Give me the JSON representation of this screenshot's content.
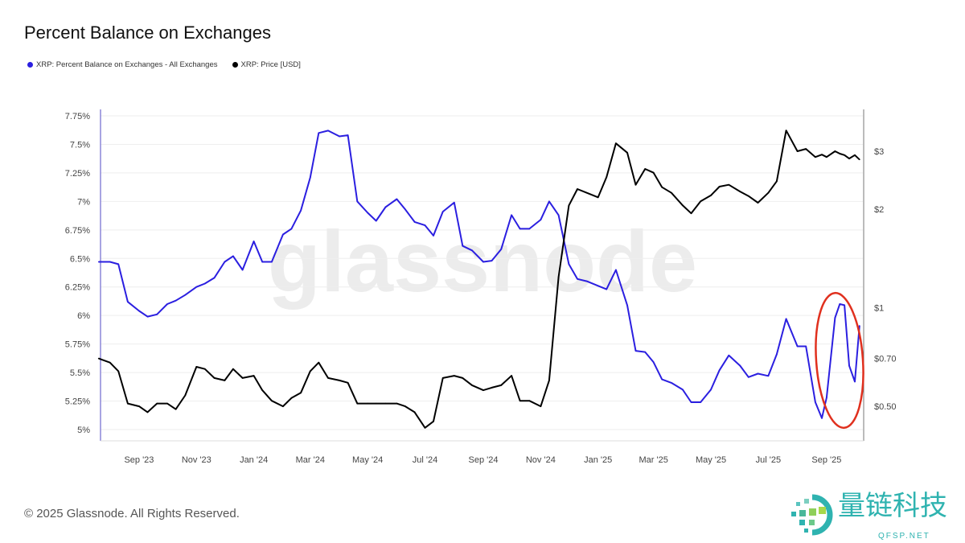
{
  "title": "Percent Balance on Exchanges",
  "legend": [
    {
      "label": "XRP: Percent Balance on Exchanges - All Exchanges",
      "color": "#2b1fe0"
    },
    {
      "label": "XRP: Price [USD]",
      "color": "#000000"
    }
  ],
  "watermark": "glassnode",
  "footer": "© 2025 Glassnode. All Rights Reserved.",
  "logo": {
    "text": "量链科技",
    "sub": "QFSP.NET"
  },
  "annotation_color": "#e0301e",
  "chart_data": {
    "type": "line",
    "title": "Percent Balance on Exchanges",
    "grid": true,
    "legend_position": "top-left",
    "x_ticks": [
      {
        "label": "Sep '23",
        "date": "2023-09-01"
      },
      {
        "label": "Nov '23",
        "date": "2023-11-01"
      },
      {
        "label": "Jan '24",
        "date": "2024-01-01"
      },
      {
        "label": "Mar '24",
        "date": "2024-03-01"
      },
      {
        "label": "May '24",
        "date": "2024-05-01"
      },
      {
        "label": "Jul '24",
        "date": "2024-07-01"
      },
      {
        "label": "Sep '24",
        "date": "2024-09-01"
      },
      {
        "label": "Nov '24",
        "date": "2024-11-01"
      },
      {
        "label": "Jan '25",
        "date": "2025-01-01"
      },
      {
        "label": "Mar '25",
        "date": "2025-03-01"
      },
      {
        "label": "May '25",
        "date": "2025-05-01"
      },
      {
        "label": "Jul '25",
        "date": "2025-07-01"
      },
      {
        "label": "Sep '25",
        "date": "2025-09-01"
      }
    ],
    "x_range": [
      "2023-07-22",
      "2025-10-07"
    ],
    "y_left": {
      "scale": "linear",
      "range": [
        5,
        7.75
      ],
      "ticks": [
        {
          "v": 5,
          "label": "5%"
        },
        {
          "v": 5.25,
          "label": "5.25%"
        },
        {
          "v": 5.5,
          "label": "5.5%"
        },
        {
          "v": 5.75,
          "label": "5.75%"
        },
        {
          "v": 6,
          "label": "6%"
        },
        {
          "v": 6.25,
          "label": "6.25%"
        },
        {
          "v": 6.5,
          "label": "6.5%"
        },
        {
          "v": 6.75,
          "label": "6.75%"
        },
        {
          "v": 7,
          "label": "7%"
        },
        {
          "v": 7.25,
          "label": "7.25%"
        },
        {
          "v": 7.5,
          "label": "7.5%"
        },
        {
          "v": 7.75,
          "label": "7.75%"
        }
      ]
    },
    "y_right": {
      "scale": "log",
      "ticks": [
        {
          "v": 0.5,
          "label": "$0.50"
        },
        {
          "v": 0.7,
          "label": "$0.70"
        },
        {
          "v": 1,
          "label": "$1"
        },
        {
          "v": 2,
          "label": "$2"
        },
        {
          "v": 3,
          "label": "$3"
        }
      ]
    },
    "dates": [
      "2023-07-20",
      "2023-08-01",
      "2023-08-10",
      "2023-08-20",
      "2023-09-01",
      "2023-09-10",
      "2023-09-20",
      "2023-10-01",
      "2023-10-10",
      "2023-10-20",
      "2023-11-01",
      "2023-11-10",
      "2023-11-20",
      "2023-12-01",
      "2023-12-10",
      "2023-12-20",
      "2024-01-01",
      "2024-01-10",
      "2024-01-20",
      "2024-02-01",
      "2024-02-10",
      "2024-02-20",
      "2024-03-01",
      "2024-03-10",
      "2024-03-20",
      "2024-04-01",
      "2024-04-10",
      "2024-04-20",
      "2024-05-01",
      "2024-05-10",
      "2024-05-20",
      "2024-06-01",
      "2024-06-10",
      "2024-06-20",
      "2024-07-01",
      "2024-07-10",
      "2024-07-20",
      "2024-08-01",
      "2024-08-10",
      "2024-08-20",
      "2024-09-01",
      "2024-09-10",
      "2024-09-20",
      "2024-10-01",
      "2024-10-10",
      "2024-10-20",
      "2024-11-01",
      "2024-11-10",
      "2024-11-20",
      "2024-12-01",
      "2024-12-10",
      "2024-12-20",
      "2025-01-01",
      "2025-01-10",
      "2025-01-20",
      "2025-02-01",
      "2025-02-10",
      "2025-02-20",
      "2025-03-01",
      "2025-03-10",
      "2025-03-20",
      "2025-04-01",
      "2025-04-10",
      "2025-04-20",
      "2025-05-01",
      "2025-05-10",
      "2025-05-20",
      "2025-06-01",
      "2025-06-10",
      "2025-06-20",
      "2025-07-01",
      "2025-07-10",
      "2025-07-20",
      "2025-08-01",
      "2025-08-10",
      "2025-08-20",
      "2025-08-27",
      "2025-09-01",
      "2025-09-10",
      "2025-09-15",
      "2025-09-20",
      "2025-09-25",
      "2025-10-01",
      "2025-10-06"
    ],
    "series": [
      {
        "name": "XRP: Percent Balance on Exchanges - All Exchanges",
        "axis": "left",
        "color": "#2b1fe0",
        "values": [
          6.47,
          6.47,
          6.45,
          6.12,
          6.04,
          5.99,
          6.01,
          6.1,
          6.13,
          6.18,
          6.25,
          6.28,
          6.33,
          6.47,
          6.52,
          6.4,
          6.65,
          6.47,
          6.47,
          6.71,
          6.76,
          6.92,
          7.21,
          7.6,
          7.62,
          7.57,
          7.58,
          7.0,
          6.9,
          6.83,
          6.95,
          7.02,
          6.93,
          6.82,
          6.79,
          6.7,
          6.91,
          6.99,
          6.61,
          6.57,
          6.47,
          6.48,
          6.58,
          6.88,
          6.76,
          6.76,
          6.84,
          7.0,
          6.88,
          6.45,
          6.32,
          6.3,
          6.26,
          6.23,
          6.4,
          6.09,
          5.69,
          5.68,
          5.59,
          5.44,
          5.41,
          5.35,
          5.24,
          5.24,
          5.35,
          5.52,
          5.65,
          5.56,
          5.46,
          5.49,
          5.47,
          5.66,
          5.97,
          5.73,
          5.73,
          5.24,
          5.1,
          5.28,
          5.98,
          6.1,
          6.09,
          5.56,
          5.42,
          5.91
        ]
      },
      {
        "name": "XRP: Price [USD]",
        "axis": "right",
        "color": "#000000",
        "values": [
          0.7,
          0.68,
          0.64,
          0.51,
          0.5,
          0.48,
          0.51,
          0.51,
          0.49,
          0.54,
          0.66,
          0.65,
          0.61,
          0.6,
          0.65,
          0.61,
          0.62,
          0.56,
          0.52,
          0.5,
          0.53,
          0.55,
          0.64,
          0.68,
          0.61,
          0.6,
          0.59,
          0.51,
          0.51,
          0.51,
          0.51,
          0.51,
          0.5,
          0.48,
          0.43,
          0.45,
          0.61,
          0.62,
          0.61,
          0.58,
          0.56,
          0.57,
          0.58,
          0.62,
          0.52,
          0.52,
          0.5,
          0.6,
          1.24,
          2.05,
          2.3,
          2.24,
          2.17,
          2.5,
          3.17,
          2.97,
          2.37,
          2.65,
          2.58,
          2.33,
          2.24,
          2.05,
          1.94,
          2.11,
          2.2,
          2.34,
          2.37,
          2.26,
          2.19,
          2.09,
          2.24,
          2.43,
          3.47,
          3.0,
          3.05,
          2.88,
          2.93,
          2.88,
          3.0,
          2.95,
          2.92,
          2.85,
          2.92,
          2.83
        ]
      }
    ]
  }
}
